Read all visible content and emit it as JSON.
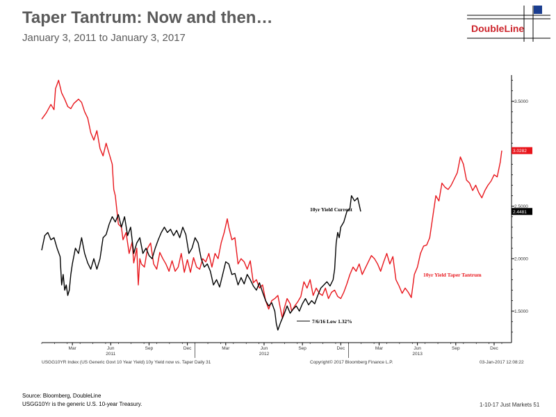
{
  "header": {
    "title": "Taper Tantrum: Now and then…",
    "subtitle": "January 3, 2011 to January 3, 2017",
    "logo_text": "DoubleLine"
  },
  "chart_data": {
    "type": "line",
    "xlabel": "",
    "ylabel": "",
    "ylim": [
      1.2,
      3.75
    ],
    "grid": false,
    "x_ticks": [
      {
        "label": "Mar",
        "x": 0.2
      },
      {
        "label": "Jun",
        "x": 0.45
      },
      {
        "label": "Sep",
        "x": 0.7
      },
      {
        "label": "Dec",
        "x": 0.95
      },
      {
        "label": "Mar",
        "x": 1.2
      },
      {
        "label": "Jun",
        "x": 1.45
      },
      {
        "label": "Sep",
        "x": 1.7
      },
      {
        "label": "Dec",
        "x": 1.95
      },
      {
        "label": "Mar",
        "x": 2.2
      },
      {
        "label": "Jun",
        "x": 2.45
      },
      {
        "label": "Sep",
        "x": 2.7
      },
      {
        "label": "Dec",
        "x": 2.95
      }
    ],
    "year_labels": [
      {
        "label": "2011",
        "x": 0.45
      },
      {
        "label": "2012",
        "x": 1.45
      },
      {
        "label": "2013",
        "x": 2.45
      }
    ],
    "y_ticks": [
      {
        "label": "3.5000",
        "y": 3.5
      },
      {
        "label": "2.5000",
        "y": 2.5
      },
      {
        "label": "2.0000",
        "y": 2.0
      },
      {
        "label": "1.5000",
        "y": 1.5
      }
    ],
    "y_minor": [
      1.3,
      1.4,
      1.6,
      1.7,
      1.8,
      1.9,
      2.1,
      2.2,
      2.3,
      2.4,
      2.6,
      2.7,
      2.8,
      2.9,
      3.1,
      3.2,
      3.3,
      3.4,
      3.6,
      3.7
    ],
    "series": [
      {
        "name": "10yr Yield Taper Tantrum",
        "color": "#e8151b",
        "last_value_label": "3.0282",
        "points": [
          [
            0.0,
            3.33
          ],
          [
            0.03,
            3.39
          ],
          [
            0.06,
            3.47
          ],
          [
            0.08,
            3.42
          ],
          [
            0.09,
            3.62
          ],
          [
            0.11,
            3.7
          ],
          [
            0.13,
            3.58
          ],
          [
            0.15,
            3.52
          ],
          [
            0.17,
            3.45
          ],
          [
            0.19,
            3.43
          ],
          [
            0.21,
            3.48
          ],
          [
            0.24,
            3.52
          ],
          [
            0.26,
            3.49
          ],
          [
            0.28,
            3.4
          ],
          [
            0.3,
            3.34
          ],
          [
            0.32,
            3.2
          ],
          [
            0.34,
            3.13
          ],
          [
            0.36,
            3.22
          ],
          [
            0.38,
            3.05
          ],
          [
            0.4,
            2.98
          ],
          [
            0.42,
            3.1
          ],
          [
            0.44,
            3.0
          ],
          [
            0.46,
            2.9
          ],
          [
            0.47,
            2.66
          ],
          [
            0.48,
            2.6
          ],
          [
            0.5,
            2.33
          ],
          [
            0.52,
            2.3
          ],
          [
            0.53,
            2.18
          ],
          [
            0.55,
            2.25
          ],
          [
            0.57,
            2.05
          ],
          [
            0.59,
            2.16
          ],
          [
            0.6,
            1.96
          ],
          [
            0.62,
            2.1
          ],
          [
            0.63,
            1.75
          ],
          [
            0.64,
            2.0
          ],
          [
            0.65,
            1.95
          ],
          [
            0.67,
            1.92
          ],
          [
            0.69,
            2.1
          ],
          [
            0.71,
            2.15
          ],
          [
            0.73,
            1.95
          ],
          [
            0.75,
            1.9
          ],
          [
            0.77,
            2.06
          ],
          [
            0.79,
            2.0
          ],
          [
            0.81,
            1.95
          ],
          [
            0.83,
            1.88
          ],
          [
            0.85,
            1.98
          ],
          [
            0.87,
            1.88
          ],
          [
            0.89,
            1.92
          ],
          [
            0.91,
            2.05
          ],
          [
            0.93,
            1.87
          ],
          [
            0.95,
            1.99
          ],
          [
            0.97,
            1.87
          ],
          [
            0.99,
            2.01
          ],
          [
            1.01,
            1.92
          ],
          [
            1.03,
            1.9
          ],
          [
            1.05,
            2.0
          ],
          [
            1.07,
            1.97
          ],
          [
            1.09,
            2.05
          ],
          [
            1.11,
            1.92
          ],
          [
            1.13,
            2.05
          ],
          [
            1.15,
            2.0
          ],
          [
            1.17,
            2.15
          ],
          [
            1.19,
            2.25
          ],
          [
            1.21,
            2.38
          ],
          [
            1.22,
            2.3
          ],
          [
            1.24,
            2.18
          ],
          [
            1.26,
            2.2
          ],
          [
            1.28,
            1.95
          ],
          [
            1.3,
            2.0
          ],
          [
            1.32,
            1.97
          ],
          [
            1.34,
            1.9
          ],
          [
            1.36,
            1.98
          ],
          [
            1.38,
            1.77
          ],
          [
            1.4,
            1.8
          ],
          [
            1.42,
            1.72
          ],
          [
            1.44,
            1.75
          ],
          [
            1.46,
            1.6
          ],
          [
            1.48,
            1.52
          ],
          [
            1.5,
            1.6
          ],
          [
            1.52,
            1.62
          ],
          [
            1.54,
            1.65
          ],
          [
            1.56,
            1.5
          ],
          [
            1.57,
            1.43
          ],
          [
            1.58,
            1.52
          ],
          [
            1.6,
            1.62
          ],
          [
            1.62,
            1.57
          ],
          [
            1.63,
            1.5
          ],
          [
            1.65,
            1.55
          ],
          [
            1.67,
            1.59
          ],
          [
            1.69,
            1.64
          ],
          [
            1.71,
            1.78
          ],
          [
            1.73,
            1.72
          ],
          [
            1.75,
            1.8
          ],
          [
            1.77,
            1.65
          ],
          [
            1.79,
            1.72
          ],
          [
            1.81,
            1.67
          ],
          [
            1.83,
            1.65
          ],
          [
            1.85,
            1.72
          ],
          [
            1.87,
            1.62
          ],
          [
            1.89,
            1.68
          ],
          [
            1.91,
            1.7
          ],
          [
            1.93,
            1.64
          ],
          [
            1.95,
            1.62
          ],
          [
            1.97,
            1.68
          ],
          [
            1.99,
            1.76
          ],
          [
            2.01,
            1.85
          ],
          [
            2.03,
            1.92
          ],
          [
            2.05,
            1.88
          ],
          [
            2.07,
            1.95
          ],
          [
            2.09,
            1.85
          ],
          [
            2.11,
            1.91
          ],
          [
            2.13,
            1.97
          ],
          [
            2.15,
            2.03
          ],
          [
            2.17,
            2.0
          ],
          [
            2.19,
            1.95
          ],
          [
            2.21,
            1.88
          ],
          [
            2.23,
            1.97
          ],
          [
            2.25,
            2.05
          ],
          [
            2.27,
            1.95
          ],
          [
            2.29,
            2.02
          ],
          [
            2.31,
            1.8
          ],
          [
            2.33,
            1.74
          ],
          [
            2.35,
            1.67
          ],
          [
            2.37,
            1.72
          ],
          [
            2.39,
            1.68
          ],
          [
            2.41,
            1.63
          ],
          [
            2.43,
            1.85
          ],
          [
            2.45,
            1.92
          ],
          [
            2.47,
            2.05
          ],
          [
            2.49,
            2.12
          ],
          [
            2.51,
            2.13
          ],
          [
            2.53,
            2.2
          ],
          [
            2.55,
            2.4
          ],
          [
            2.57,
            2.6
          ],
          [
            2.59,
            2.55
          ],
          [
            2.61,
            2.72
          ],
          [
            2.63,
            2.68
          ],
          [
            2.65,
            2.66
          ],
          [
            2.67,
            2.7
          ],
          [
            2.69,
            2.76
          ],
          [
            2.71,
            2.82
          ],
          [
            2.73,
            2.97
          ],
          [
            2.75,
            2.9
          ],
          [
            2.77,
            2.75
          ],
          [
            2.79,
            2.72
          ],
          [
            2.81,
            2.65
          ],
          [
            2.83,
            2.7
          ],
          [
            2.85,
            2.63
          ],
          [
            2.87,
            2.58
          ],
          [
            2.89,
            2.65
          ],
          [
            2.91,
            2.7
          ],
          [
            2.93,
            2.74
          ],
          [
            2.95,
            2.8
          ],
          [
            2.97,
            2.78
          ],
          [
            2.99,
            2.92
          ],
          [
            3.0,
            3.03
          ]
        ]
      },
      {
        "name": "10yr Yield Current",
        "color": "#000000",
        "last_value_label": "2.4481",
        "points": [
          [
            0.0,
            2.08
          ],
          [
            0.02,
            2.22
          ],
          [
            0.04,
            2.25
          ],
          [
            0.06,
            2.18
          ],
          [
            0.08,
            2.2
          ],
          [
            0.1,
            2.1
          ],
          [
            0.12,
            2.02
          ],
          [
            0.13,
            1.75
          ],
          [
            0.14,
            1.85
          ],
          [
            0.15,
            1.7
          ],
          [
            0.16,
            1.75
          ],
          [
            0.17,
            1.65
          ],
          [
            0.18,
            1.7
          ],
          [
            0.19,
            1.85
          ],
          [
            0.2,
            1.95
          ],
          [
            0.22,
            2.1
          ],
          [
            0.24,
            2.05
          ],
          [
            0.26,
            2.2
          ],
          [
            0.28,
            2.05
          ],
          [
            0.3,
            1.96
          ],
          [
            0.32,
            1.9
          ],
          [
            0.34,
            2.0
          ],
          [
            0.36,
            1.9
          ],
          [
            0.38,
            2.0
          ],
          [
            0.4,
            2.2
          ],
          [
            0.42,
            2.23
          ],
          [
            0.44,
            2.33
          ],
          [
            0.46,
            2.4
          ],
          [
            0.48,
            2.35
          ],
          [
            0.5,
            2.42
          ],
          [
            0.52,
            2.3
          ],
          [
            0.54,
            2.4
          ],
          [
            0.56,
            2.22
          ],
          [
            0.58,
            2.3
          ],
          [
            0.6,
            2.05
          ],
          [
            0.62,
            2.15
          ],
          [
            0.64,
            2.2
          ],
          [
            0.66,
            2.05
          ],
          [
            0.68,
            2.1
          ],
          [
            0.7,
            2.03
          ],
          [
            0.72,
            2.0
          ],
          [
            0.74,
            2.1
          ],
          [
            0.76,
            2.18
          ],
          [
            0.78,
            2.25
          ],
          [
            0.8,
            2.3
          ],
          [
            0.82,
            2.25
          ],
          [
            0.84,
            2.28
          ],
          [
            0.86,
            2.22
          ],
          [
            0.88,
            2.27
          ],
          [
            0.9,
            2.2
          ],
          [
            0.92,
            2.3
          ],
          [
            0.94,
            2.23
          ],
          [
            0.96,
            2.05
          ],
          [
            0.98,
            2.1
          ],
          [
            1.0,
            2.2
          ],
          [
            1.02,
            2.15
          ],
          [
            1.04,
            2.0
          ],
          [
            1.06,
            1.92
          ],
          [
            1.08,
            1.95
          ],
          [
            1.1,
            1.88
          ],
          [
            1.12,
            1.75
          ],
          [
            1.14,
            1.8
          ],
          [
            1.16,
            1.73
          ],
          [
            1.18,
            1.85
          ],
          [
            1.2,
            1.97
          ],
          [
            1.22,
            1.95
          ],
          [
            1.24,
            1.85
          ],
          [
            1.26,
            1.86
          ],
          [
            1.28,
            1.75
          ],
          [
            1.3,
            1.82
          ],
          [
            1.32,
            1.76
          ],
          [
            1.34,
            1.85
          ],
          [
            1.36,
            1.8
          ],
          [
            1.38,
            1.74
          ],
          [
            1.4,
            1.7
          ],
          [
            1.42,
            1.77
          ],
          [
            1.44,
            1.68
          ],
          [
            1.46,
            1.6
          ],
          [
            1.48,
            1.55
          ],
          [
            1.5,
            1.58
          ],
          [
            1.52,
            1.5
          ],
          [
            1.53,
            1.38
          ],
          [
            1.54,
            1.32
          ],
          [
            1.55,
            1.36
          ],
          [
            1.56,
            1.4
          ],
          [
            1.58,
            1.47
          ],
          [
            1.6,
            1.55
          ],
          [
            1.62,
            1.48
          ],
          [
            1.64,
            1.52
          ],
          [
            1.66,
            1.55
          ],
          [
            1.68,
            1.5
          ],
          [
            1.7,
            1.57
          ],
          [
            1.72,
            1.62
          ],
          [
            1.74,
            1.56
          ],
          [
            1.76,
            1.6
          ],
          [
            1.78,
            1.57
          ],
          [
            1.8,
            1.65
          ],
          [
            1.82,
            1.72
          ],
          [
            1.84,
            1.75
          ],
          [
            1.86,
            1.78
          ],
          [
            1.88,
            1.74
          ],
          [
            1.9,
            1.8
          ],
          [
            1.91,
            1.9
          ],
          [
            1.92,
            2.15
          ],
          [
            1.93,
            2.25
          ],
          [
            1.94,
            2.2
          ],
          [
            1.95,
            2.3
          ],
          [
            1.97,
            2.35
          ],
          [
            1.99,
            2.45
          ],
          [
            2.01,
            2.48
          ],
          [
            2.02,
            2.6
          ],
          [
            2.04,
            2.55
          ],
          [
            2.06,
            2.58
          ],
          [
            2.08,
            2.45
          ]
        ]
      }
    ],
    "annotations": [
      {
        "text": "10yr Yield Current",
        "color": "#000000"
      },
      {
        "text": "10yr Yield Taper Tantrum",
        "color": "#e8151b"
      },
      {
        "text": "7/6/16 Low 1.32%",
        "color": "#000000"
      }
    ],
    "footer_left": "USGG10YR Index (US Generic Govt 10 Year Yield) 10y Yield now vs. Taper  Daily 31",
    "footer_mid": "Copyright© 2017 Bloomberg Finance L.P.",
    "footer_right": "03-Jan-2017 12:08:22"
  },
  "footer": {
    "source_line1": "Source: Bloomberg, DoubleLine",
    "source_line2": "USGG10Yr is the generic U.S. 10-year Treasury.",
    "page_ref": "1-10-17 Just Markets   51"
  }
}
